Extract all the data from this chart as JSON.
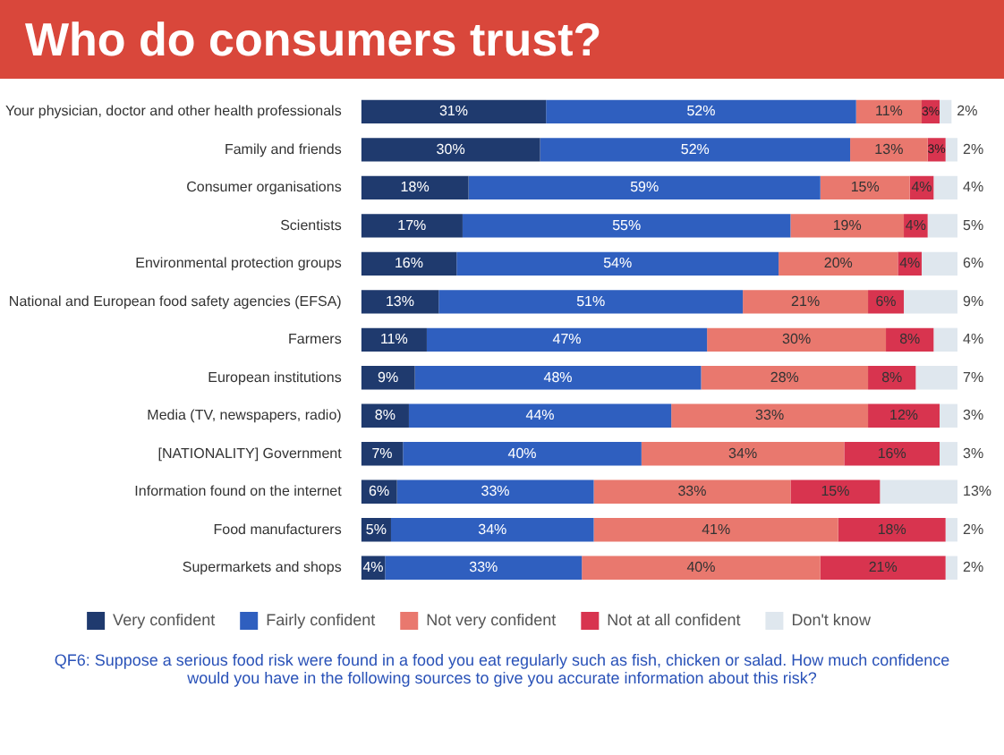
{
  "chart_data": {
    "type": "bar",
    "orientation": "horizontal",
    "stacked": true,
    "title": "Who do consumers trust?",
    "categories": [
      "Your physician, doctor and other health professionals",
      "Family and friends",
      "Consumer organisations",
      "Scientists",
      "Environmental protection groups",
      "National and European food safety agencies (EFSA)",
      "Farmers",
      "European institutions",
      "Media (TV, newspapers, radio)",
      "[NATIONALITY] Government",
      "Information found on the internet",
      "Food manufacturers",
      "Supermarkets and shops"
    ],
    "series": [
      {
        "name": "Very confident",
        "color": "#1f3a6e",
        "values": [
          31,
          30,
          18,
          17,
          16,
          13,
          11,
          9,
          8,
          7,
          6,
          5,
          4
        ],
        "value_labels": [
          "31%",
          "30%",
          "18%",
          "17%",
          "16%",
          "13%",
          "11%",
          "9%",
          "8%",
          "7%",
          "6%",
          "5%",
          "4%"
        ]
      },
      {
        "name": "Fairly confident",
        "color": "#2f5fbf",
        "values": [
          52,
          52,
          59,
          55,
          54,
          51,
          47,
          48,
          44,
          40,
          33,
          34,
          33
        ],
        "value_labels": [
          "52%",
          "52%",
          "59%",
          "55%",
          "54%",
          "51%",
          "47%",
          "48%",
          "44%",
          "40%",
          "33%",
          "34%",
          "33%"
        ]
      },
      {
        "name": "Not very confident",
        "color": "#e9786e",
        "values": [
          11,
          13,
          15,
          19,
          20,
          21,
          30,
          28,
          33,
          34,
          33,
          41,
          40
        ],
        "value_labels": [
          "11%",
          "13%",
          "15%",
          "19%",
          "20%",
          "21%",
          "30%",
          "28%",
          "33%",
          "34%",
          "33%",
          "41%",
          "40%"
        ]
      },
      {
        "name": "Not at all confident",
        "color": "#d8344f",
        "values": [
          3,
          3,
          4,
          4,
          4,
          6,
          8,
          8,
          12,
          16,
          15,
          18,
          21
        ],
        "value_labels": [
          "3%",
          "3%",
          "4%",
          "4%",
          "4%",
          "6%",
          "8%",
          "8%",
          "12%",
          "16%",
          "15%",
          "18%",
          "21%"
        ]
      },
      {
        "name": "Don't know",
        "color": "#dfe7ee",
        "values": [
          2,
          2,
          4,
          5,
          6,
          9,
          4,
          7,
          3,
          3,
          13,
          2,
          2
        ],
        "value_labels": [
          "2%",
          "2%",
          "4%",
          "5%",
          "6%",
          "9%",
          "4%",
          "7%",
          "3%",
          "3%",
          "13%",
          "2%",
          "2%"
        ]
      }
    ],
    "legend": "bottom",
    "annotations": [
      "QF6: Suppose a serious food risk were found in a food you eat regularly such as fish, chicken or salad. How much confidence would you have in the following sources to give you accurate information about this risk?"
    ]
  }
}
